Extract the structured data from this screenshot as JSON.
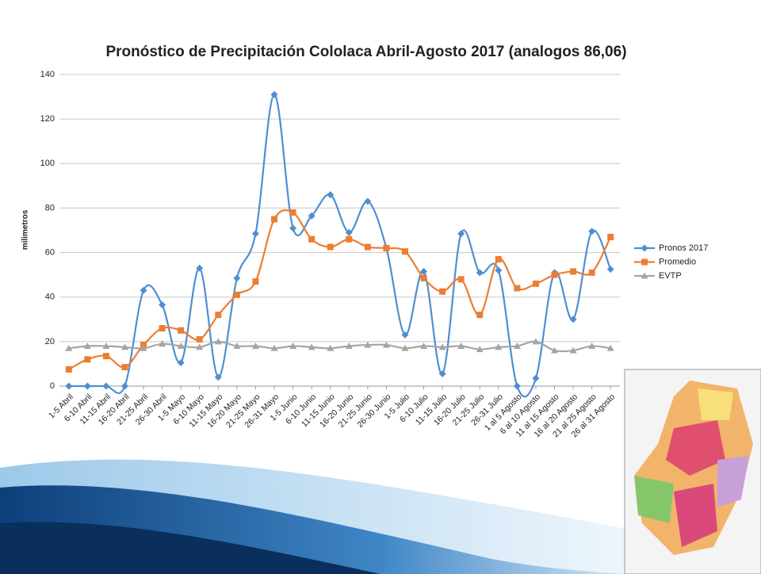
{
  "chart_data": {
    "type": "line",
    "title": "Pronóstico de Precipitación Cololaca Abril-Agosto 2017 (analogos 86,06)",
    "y_label": "milimetros",
    "categories": [
      "1-5 Abril",
      "6-10 Abril",
      "11-15 Abril",
      "16-20 Abril",
      "21-25 Abril",
      "26-30 Abril",
      "1-5 Mayo",
      "6-10 Mayo",
      "11-15 Mayo",
      "16-20 Mayo",
      "21-25 Mayo",
      "26-31 Mayo",
      "1-5 Junio",
      "6-10 Junio",
      "11-15 Junio",
      "16-20 Junio",
      "21-25 Junio",
      "26-30 Junio",
      "1-5 Julio",
      "6-10 Julio",
      "11-15 Julio",
      "16-20 Julio",
      "21-25 Julio",
      "26-31 Julio",
      "1 al 5 Agosto",
      "6 al 10 Agosto",
      "11 al 15 Agosto",
      "16 al 20 Agosto",
      "21 al 25 Agosto",
      "26 al 31 Agosto"
    ],
    "series": [
      {
        "name": "Pronos 2017",
        "color": "#4f8fd0",
        "marker": "diamond",
        "values": [
          0,
          0,
          0,
          0,
          43,
          36.5,
          10.5,
          53,
          4,
          48.5,
          68.5,
          131,
          71,
          76.5,
          86,
          69,
          83,
          62,
          23,
          51.5,
          5.5,
          68.5,
          51,
          52,
          0,
          3.5,
          51,
          30,
          69.5,
          52.5
        ]
      },
      {
        "name": "Promedio",
        "color": "#ed7d31",
        "marker": "square",
        "values": [
          7.5,
          12,
          13.5,
          8.5,
          18.5,
          26,
          25,
          21,
          32,
          41,
          47,
          75,
          78,
          66,
          62.5,
          66,
          62.5,
          62,
          60.5,
          48.5,
          42.5,
          48,
          32,
          57,
          44,
          46,
          50,
          51.5,
          51,
          67
        ]
      },
      {
        "name": "EVTP",
        "color": "#a5a5a5",
        "marker": "triangle",
        "values": [
          17,
          18,
          18,
          17.5,
          17,
          19,
          18,
          17.5,
          20,
          18,
          18,
          17,
          18,
          17.5,
          17,
          18,
          18.5,
          18.5,
          17,
          18,
          17.5,
          18,
          16.5,
          17.5,
          18,
          20,
          16,
          16,
          18,
          17
        ]
      }
    ],
    "ylim": [
      0,
      140
    ],
    "yticks": [
      0,
      20,
      40,
      60,
      80,
      100,
      120,
      140
    ],
    "grid": true,
    "smooth": true,
    "legend": "right"
  }
}
